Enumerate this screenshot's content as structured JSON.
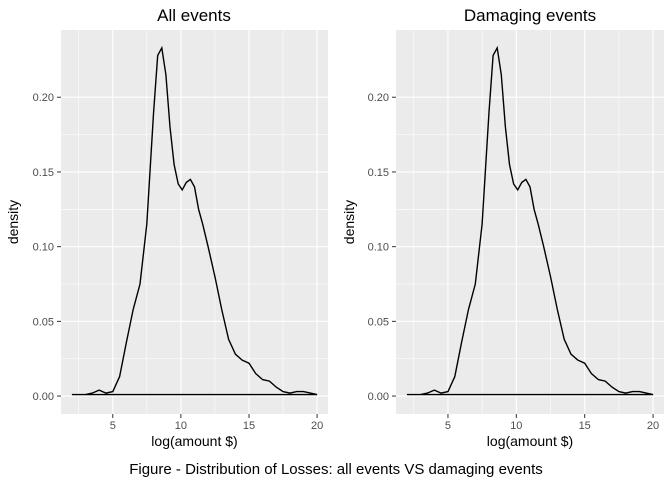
{
  "caption": "Figure - Distribution of Losses: all events VS damaging events",
  "chart_data": [
    {
      "type": "line",
      "title": "All events",
      "xlabel": "log(amount $)",
      "ylabel": "density",
      "xlim": [
        1.2,
        20.8
      ],
      "ylim": [
        -0.012,
        0.245
      ],
      "x_ticks": [
        5,
        10,
        15,
        20
      ],
      "x_tick_labels": [
        "5",
        "10",
        "15",
        "20"
      ],
      "y_ticks": [
        0,
        0.05,
        0.1,
        0.15,
        0.2
      ],
      "y_tick_labels": [
        "0.00",
        "0.05",
        "0.10",
        "0.15",
        "0.20"
      ],
      "grid": true,
      "x": [
        2.0,
        3.0,
        3.5,
        4.0,
        4.5,
        5.0,
        5.5,
        6.0,
        6.5,
        7.0,
        7.5,
        8.0,
        8.3,
        8.6,
        8.9,
        9.2,
        9.5,
        9.8,
        10.1,
        10.4,
        10.7,
        11.0,
        11.3,
        11.6,
        12.0,
        12.5,
        13.0,
        13.5,
        14.0,
        14.5,
        15.0,
        15.5,
        16.0,
        16.5,
        17.0,
        17.5,
        18.0,
        18.5,
        19.0,
        19.5,
        20.0
      ],
      "y": [
        0.001,
        0.001,
        0.002,
        0.004,
        0.002,
        0.003,
        0.013,
        0.036,
        0.058,
        0.075,
        0.115,
        0.19,
        0.228,
        0.233,
        0.215,
        0.18,
        0.155,
        0.142,
        0.138,
        0.143,
        0.145,
        0.14,
        0.125,
        0.115,
        0.1,
        0.08,
        0.058,
        0.038,
        0.028,
        0.024,
        0.022,
        0.015,
        0.011,
        0.01,
        0.006,
        0.003,
        0.002,
        0.003,
        0.003,
        0.002,
        0.001
      ]
    },
    {
      "type": "line",
      "title": "Damaging events",
      "xlabel": "log(amount $)",
      "ylabel": "density",
      "xlim": [
        1.2,
        20.8
      ],
      "ylim": [
        -0.012,
        0.245
      ],
      "x_ticks": [
        5,
        10,
        15,
        20
      ],
      "x_tick_labels": [
        "5",
        "10",
        "15",
        "20"
      ],
      "y_ticks": [
        0,
        0.05,
        0.1,
        0.15,
        0.2
      ],
      "y_tick_labels": [
        "0.00",
        "0.05",
        "0.10",
        "0.15",
        "0.20"
      ],
      "grid": true,
      "x": [
        2.0,
        3.0,
        3.5,
        4.0,
        4.5,
        5.0,
        5.5,
        6.0,
        6.5,
        7.0,
        7.5,
        8.0,
        8.3,
        8.6,
        8.9,
        9.2,
        9.5,
        9.8,
        10.1,
        10.4,
        10.7,
        11.0,
        11.3,
        11.6,
        12.0,
        12.5,
        13.0,
        13.5,
        14.0,
        14.5,
        15.0,
        15.5,
        16.0,
        16.5,
        17.0,
        17.5,
        18.0,
        18.5,
        19.0,
        19.5,
        20.0
      ],
      "y": [
        0.001,
        0.001,
        0.002,
        0.004,
        0.002,
        0.003,
        0.013,
        0.036,
        0.058,
        0.075,
        0.115,
        0.19,
        0.228,
        0.233,
        0.215,
        0.18,
        0.155,
        0.142,
        0.138,
        0.143,
        0.145,
        0.14,
        0.125,
        0.115,
        0.1,
        0.08,
        0.058,
        0.038,
        0.028,
        0.024,
        0.022,
        0.015,
        0.011,
        0.01,
        0.006,
        0.003,
        0.002,
        0.003,
        0.003,
        0.002,
        0.001
      ]
    }
  ]
}
